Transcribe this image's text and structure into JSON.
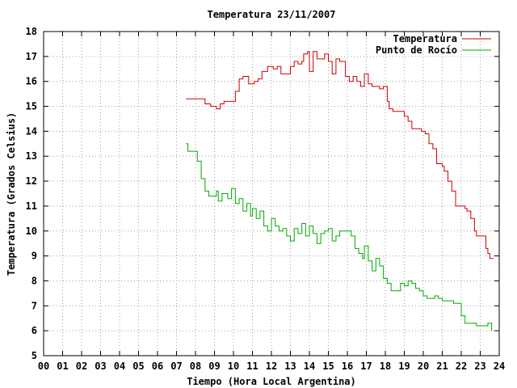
{
  "chart_data": {
    "type": "line",
    "title": "Temperatura 23/11/2007",
    "xlabel": "Tiempo (Hora Local Argentina)",
    "ylabel": "Temperatura (Grados Celsius)",
    "xlim": [
      0,
      24
    ],
    "ylim": [
      5,
      18
    ],
    "x_ticks": [
      "00",
      "01",
      "02",
      "03",
      "04",
      "05",
      "06",
      "07",
      "08",
      "09",
      "10",
      "11",
      "12",
      "13",
      "14",
      "15",
      "16",
      "17",
      "18",
      "19",
      "20",
      "21",
      "22",
      "23",
      "24"
    ],
    "y_ticks": [
      "5",
      "6",
      "7",
      "8",
      "9",
      "10",
      "11",
      "12",
      "13",
      "14",
      "15",
      "16",
      "17",
      "18"
    ],
    "grid": true,
    "legend_position": "top-right",
    "series": [
      {
        "name": "Temperatura",
        "color": "#cc0000",
        "points": [
          [
            7.5,
            15.3
          ],
          [
            8.3,
            15.3
          ],
          [
            8.5,
            15.1
          ],
          [
            8.8,
            15.0
          ],
          [
            9.1,
            14.9
          ],
          [
            9.3,
            15.1
          ],
          [
            9.5,
            15.2
          ],
          [
            10.0,
            15.2
          ],
          [
            10.1,
            15.6
          ],
          [
            10.3,
            16.1
          ],
          [
            10.5,
            16.2
          ],
          [
            10.8,
            15.9
          ],
          [
            11.1,
            16.0
          ],
          [
            11.3,
            16.1
          ],
          [
            11.5,
            16.4
          ],
          [
            11.8,
            16.6
          ],
          [
            12.1,
            16.5
          ],
          [
            12.3,
            16.6
          ],
          [
            12.5,
            16.3
          ],
          [
            12.8,
            16.3
          ],
          [
            13.0,
            16.6
          ],
          [
            13.2,
            16.8
          ],
          [
            13.4,
            16.7
          ],
          [
            13.6,
            16.8
          ],
          [
            13.7,
            17.1
          ],
          [
            13.9,
            17.2
          ],
          [
            14.0,
            16.4
          ],
          [
            14.2,
            17.2
          ],
          [
            14.4,
            16.9
          ],
          [
            14.6,
            16.9
          ],
          [
            14.8,
            17.1
          ],
          [
            15.0,
            16.8
          ],
          [
            15.2,
            16.3
          ],
          [
            15.4,
            16.9
          ],
          [
            15.6,
            16.8
          ],
          [
            15.8,
            16.8
          ],
          [
            15.9,
            16.2
          ],
          [
            16.1,
            16.0
          ],
          [
            16.3,
            16.2
          ],
          [
            16.5,
            16.0
          ],
          [
            16.7,
            15.8
          ],
          [
            16.9,
            16.3
          ],
          [
            17.1,
            15.9
          ],
          [
            17.3,
            15.8
          ],
          [
            17.5,
            15.8
          ],
          [
            17.7,
            15.7
          ],
          [
            17.9,
            15.8
          ],
          [
            18.1,
            15.2
          ],
          [
            18.2,
            14.9
          ],
          [
            18.4,
            14.8
          ],
          [
            18.8,
            14.8
          ],
          [
            19.0,
            14.6
          ],
          [
            19.2,
            14.4
          ],
          [
            19.4,
            14.1
          ],
          [
            19.6,
            14.1
          ],
          [
            19.9,
            14.0
          ],
          [
            20.1,
            13.9
          ],
          [
            20.3,
            13.5
          ],
          [
            20.5,
            13.3
          ],
          [
            20.7,
            12.7
          ],
          [
            21.0,
            12.6
          ],
          [
            21.1,
            12.4
          ],
          [
            21.3,
            12.0
          ],
          [
            21.5,
            11.6
          ],
          [
            21.7,
            11.0
          ],
          [
            22.0,
            11.0
          ],
          [
            22.2,
            10.9
          ],
          [
            22.3,
            10.8
          ],
          [
            22.5,
            10.5
          ],
          [
            22.7,
            10.0
          ],
          [
            22.8,
            9.8
          ],
          [
            23.1,
            9.8
          ],
          [
            23.3,
            9.3
          ],
          [
            23.4,
            9.1
          ],
          [
            23.5,
            8.9
          ],
          [
            23.7,
            8.9
          ]
        ]
      },
      {
        "name": "Punto de Rocío",
        "color": "#00aa00",
        "points": [
          [
            7.5,
            13.5
          ],
          [
            7.6,
            13.2
          ],
          [
            8.0,
            13.2
          ],
          [
            8.1,
            12.8
          ],
          [
            8.3,
            12.1
          ],
          [
            8.5,
            11.6
          ],
          [
            8.7,
            11.4
          ],
          [
            9.0,
            11.4
          ],
          [
            9.1,
            11.6
          ],
          [
            9.2,
            11.2
          ],
          [
            9.4,
            11.5
          ],
          [
            9.7,
            11.3
          ],
          [
            9.9,
            11.7
          ],
          [
            10.1,
            11.1
          ],
          [
            10.3,
            11.3
          ],
          [
            10.5,
            10.8
          ],
          [
            10.7,
            11.1
          ],
          [
            10.9,
            10.6
          ],
          [
            11.0,
            10.9
          ],
          [
            11.2,
            10.5
          ],
          [
            11.4,
            10.8
          ],
          [
            11.6,
            10.2
          ],
          [
            11.8,
            10.0
          ],
          [
            12.0,
            10.5
          ],
          [
            12.2,
            10.2
          ],
          [
            12.4,
            10.0
          ],
          [
            12.6,
            10.1
          ],
          [
            12.8,
            9.8
          ],
          [
            13.0,
            9.6
          ],
          [
            13.2,
            10.1
          ],
          [
            13.4,
            9.9
          ],
          [
            13.6,
            10.3
          ],
          [
            13.8,
            9.8
          ],
          [
            14.0,
            10.2
          ],
          [
            14.2,
            9.9
          ],
          [
            14.4,
            9.5
          ],
          [
            14.6,
            9.9
          ],
          [
            14.8,
            10.0
          ],
          [
            15.0,
            10.1
          ],
          [
            15.2,
            9.6
          ],
          [
            15.4,
            9.8
          ],
          [
            15.6,
            10.0
          ],
          [
            15.8,
            10.0
          ],
          [
            16.0,
            10.0
          ],
          [
            16.2,
            9.8
          ],
          [
            16.4,
            9.3
          ],
          [
            16.6,
            9.1
          ],
          [
            16.8,
            8.9
          ],
          [
            16.9,
            9.4
          ],
          [
            17.1,
            8.8
          ],
          [
            17.3,
            8.4
          ],
          [
            17.5,
            8.9
          ],
          [
            17.7,
            8.6
          ],
          [
            17.9,
            8.1
          ],
          [
            18.1,
            7.9
          ],
          [
            18.3,
            7.6
          ],
          [
            18.6,
            7.6
          ],
          [
            18.8,
            7.9
          ],
          [
            19.0,
            7.8
          ],
          [
            19.2,
            8.0
          ],
          [
            19.4,
            7.9
          ],
          [
            19.6,
            7.7
          ],
          [
            19.8,
            7.6
          ],
          [
            20.0,
            7.4
          ],
          [
            20.2,
            7.3
          ],
          [
            20.4,
            7.3
          ],
          [
            20.6,
            7.4
          ],
          [
            20.8,
            7.3
          ],
          [
            21.0,
            7.2
          ],
          [
            21.3,
            7.2
          ],
          [
            21.6,
            7.1
          ],
          [
            21.9,
            7.1
          ],
          [
            22.0,
            6.6
          ],
          [
            22.2,
            6.3
          ],
          [
            22.5,
            6.3
          ],
          [
            22.8,
            6.2
          ],
          [
            23.1,
            6.2
          ],
          [
            23.4,
            6.3
          ],
          [
            23.6,
            6.0
          ]
        ]
      }
    ]
  }
}
